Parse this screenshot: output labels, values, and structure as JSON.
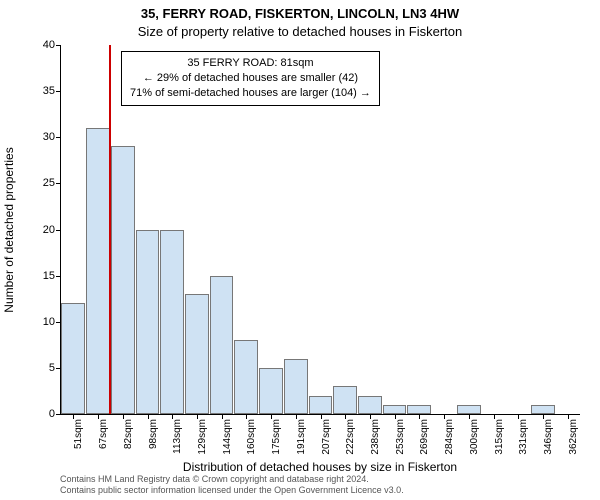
{
  "title_line1": "35, FERRY ROAD, FISKERTON, LINCOLN, LN3 4HW",
  "title_line2": "Size of property relative to detached houses in Fiskerton",
  "ylabel": "Number of detached properties",
  "xlabel": "Distribution of detached houses by size in Fiskerton",
  "footer_line1": "Contains HM Land Registry data © Crown copyright and database right 2024.",
  "footer_line2": "Contains public sector information licensed under the Open Government Licence v3.0.",
  "chart": {
    "type": "histogram",
    "ylim": [
      0,
      40
    ],
    "ytick_step": 5,
    "background_color": "#ffffff",
    "bar_fill": "#cfe2f3",
    "bar_border": "#777777",
    "vline_color": "#cc0000",
    "vline_x_category_index": 2,
    "categories": [
      "51sqm",
      "67sqm",
      "82sqm",
      "98sqm",
      "113sqm",
      "129sqm",
      "144sqm",
      "160sqm",
      "175sqm",
      "191sqm",
      "207sqm",
      "222sqm",
      "238sqm",
      "253sqm",
      "269sqm",
      "284sqm",
      "300sqm",
      "315sqm",
      "331sqm",
      "346sqm",
      "362sqm"
    ],
    "values": [
      12,
      31,
      29,
      20,
      20,
      13,
      15,
      8,
      5,
      6,
      2,
      3,
      2,
      1,
      1,
      0,
      1,
      0,
      0,
      1,
      0
    ],
    "bar_width_ratio": 0.96,
    "axis_fontsize": 11,
    "tick_fontsize": 10,
    "title_fontsize": 13
  },
  "callout": {
    "line1": "35 FERRY ROAD: 81sqm",
    "line2": "← 29% of detached houses are smaller (42)",
    "line3": "71% of semi-detached houses are larger (104) →",
    "border_color": "#000000",
    "background": "#ffffff"
  }
}
